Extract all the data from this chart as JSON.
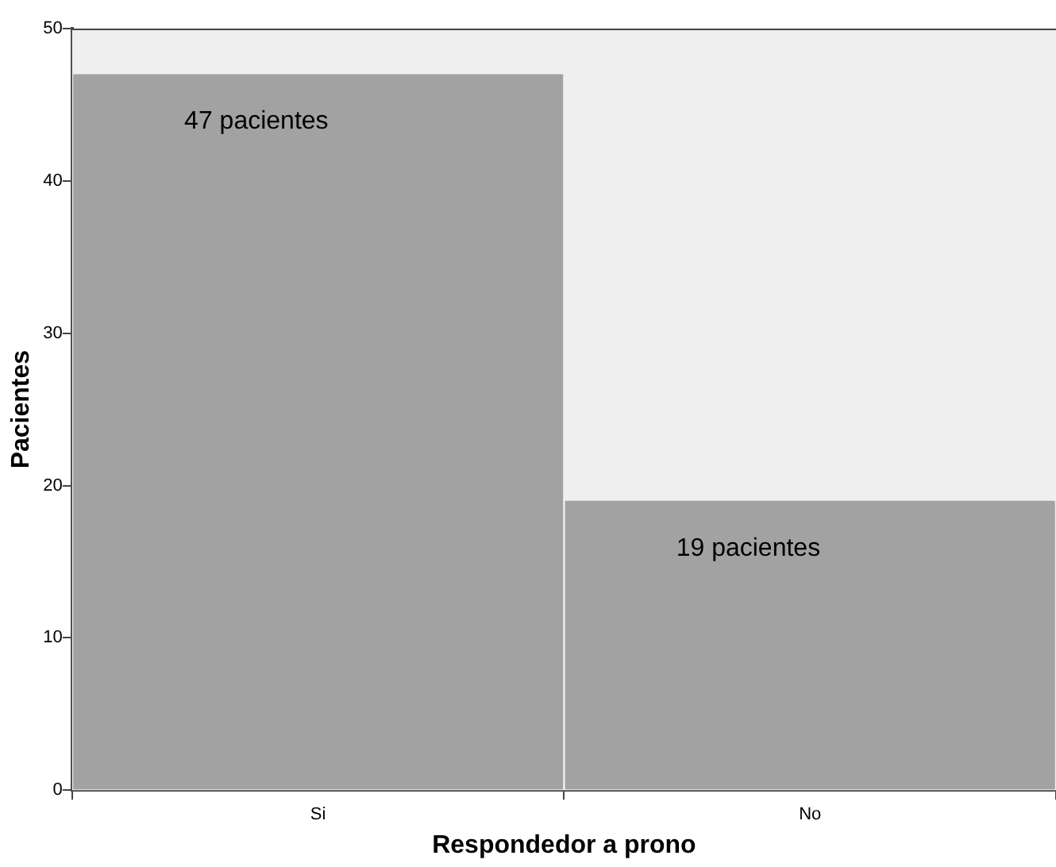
{
  "chart_data": {
    "type": "bar",
    "xlabel": "Respondedor a prono",
    "ylabel": "Pacientes",
    "categories": [
      "Si",
      "No"
    ],
    "values": [
      47,
      19
    ],
    "value_labels": [
      "47 pacientes",
      "19 pacientes"
    ],
    "color": "#a2a2a2",
    "ylim": [
      0,
      50
    ],
    "yticks": [
      0,
      10,
      20,
      30,
      40,
      50
    ],
    "grid": false,
    "legend": false
  }
}
